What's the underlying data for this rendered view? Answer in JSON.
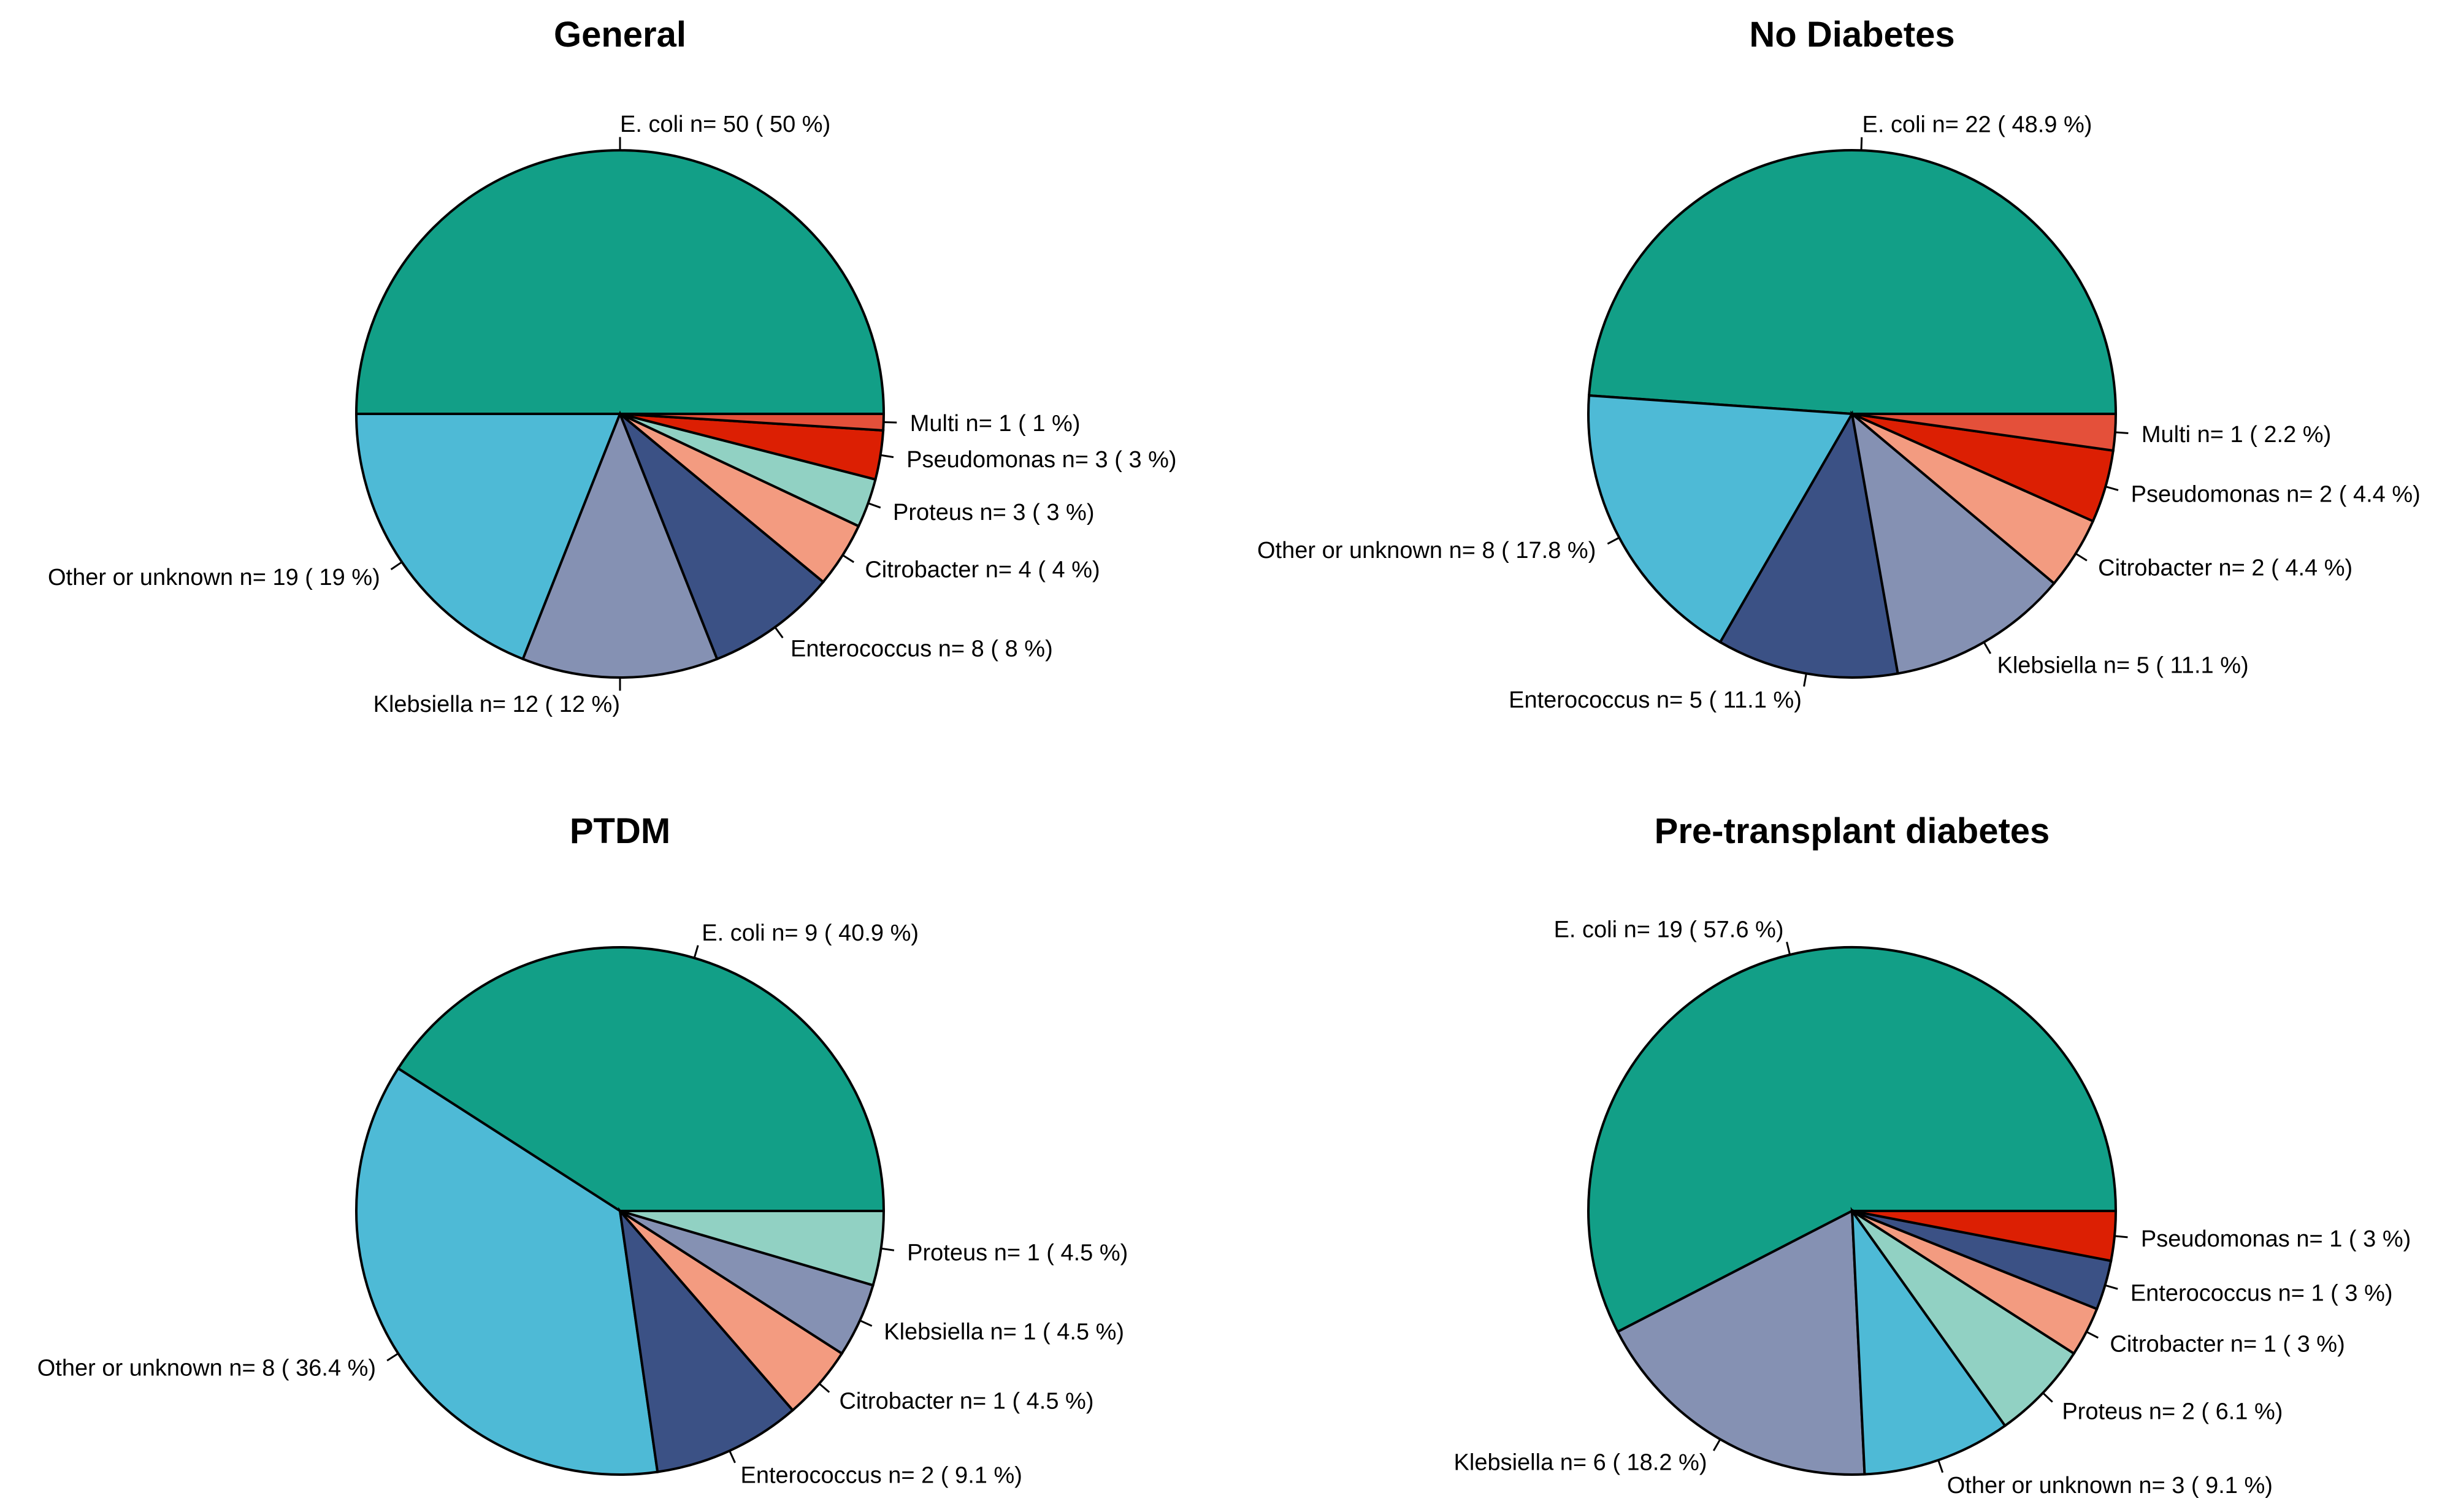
{
  "colors": {
    "E. coli": "#129f87",
    "Other or unknown": "#4ebad6",
    "Klebsiella": "#8591b3",
    "Enterococcus": "#3b5185",
    "Citrobacter": "#f39b80",
    "Proteus": "#91d1c3",
    "Pseudomonas": "#dc1f03",
    "Multi": "#e4503a"
  },
  "chart_data": [
    {
      "type": "pie",
      "title": "General",
      "slices": [
        {
          "name": "E. coli",
          "value": 50,
          "label": "E. coli n= 50 ( 50 %)"
        },
        {
          "name": "Other or unknown",
          "value": 19,
          "label": "Other or unknown n= 19 ( 19 %)"
        },
        {
          "name": "Klebsiella",
          "value": 12,
          "label": "Klebsiella n= 12 ( 12 %)"
        },
        {
          "name": "Enterococcus",
          "value": 8,
          "label": "Enterococcus n= 8 ( 8 %)"
        },
        {
          "name": "Citrobacter",
          "value": 4,
          "label": "Citrobacter n= 4 ( 4 %)"
        },
        {
          "name": "Proteus",
          "value": 3,
          "label": "Proteus n= 3 ( 3 %)"
        },
        {
          "name": "Pseudomonas",
          "value": 3,
          "label": "Pseudomonas n= 3 ( 3 %)"
        },
        {
          "name": "Multi",
          "value": 1,
          "label": "Multi n= 1 ( 1 %)"
        }
      ]
    },
    {
      "type": "pie",
      "title": "No Diabetes",
      "slices": [
        {
          "name": "E. coli",
          "value": 22,
          "label": "E. coli n= 22 ( 48.9 %)"
        },
        {
          "name": "Other or unknown",
          "value": 8,
          "label": "Other or unknown n= 8 ( 17.8 %)"
        },
        {
          "name": "Enterococcus",
          "value": 5,
          "label": "Enterococcus n= 5 ( 11.1 %)"
        },
        {
          "name": "Klebsiella",
          "value": 5,
          "label": "Klebsiella n= 5 ( 11.1 %)"
        },
        {
          "name": "Citrobacter",
          "value": 2,
          "label": "Citrobacter n= 2 ( 4.4 %)"
        },
        {
          "name": "Pseudomonas",
          "value": 2,
          "label": "Pseudomonas n= 2 ( 4.4 %)"
        },
        {
          "name": "Multi",
          "value": 1,
          "label": "Multi n= 1 ( 2.2 %)"
        }
      ]
    },
    {
      "type": "pie",
      "title": "PTDM",
      "slices": [
        {
          "name": "E. coli",
          "value": 9,
          "label": "E. coli n= 9 ( 40.9 %)"
        },
        {
          "name": "Other or unknown",
          "value": 8,
          "label": "Other or unknown n= 8 ( 36.4 %)"
        },
        {
          "name": "Enterococcus",
          "value": 2,
          "label": "Enterococcus n= 2 ( 9.1 %)"
        },
        {
          "name": "Citrobacter",
          "value": 1,
          "label": "Citrobacter n= 1 ( 4.5 %)"
        },
        {
          "name": "Klebsiella",
          "value": 1,
          "label": "Klebsiella n= 1 ( 4.5 %)"
        },
        {
          "name": "Proteus",
          "value": 1,
          "label": "Proteus n= 1 ( 4.5 %)"
        }
      ]
    },
    {
      "type": "pie",
      "title": "Pre-transplant diabetes",
      "slices": [
        {
          "name": "E. coli",
          "value": 19,
          "label": "E. coli n= 19 ( 57.6 %)"
        },
        {
          "name": "Klebsiella",
          "value": 6,
          "label": "Klebsiella n= 6 ( 18.2 %)"
        },
        {
          "name": "Other or unknown",
          "value": 3,
          "label": "Other or unknown n= 3 ( 9.1 %)"
        },
        {
          "name": "Proteus",
          "value": 2,
          "label": "Proteus n= 2 ( 6.1 %)"
        },
        {
          "name": "Citrobacter",
          "value": 1,
          "label": "Citrobacter n= 1 ( 3 %)"
        },
        {
          "name": "Enterococcus",
          "value": 1,
          "label": "Enterococcus n= 1 ( 3 %)"
        },
        {
          "name": "Pseudomonas",
          "value": 1,
          "label": "Pseudomonas n= 1 ( 3 %)"
        }
      ]
    }
  ]
}
